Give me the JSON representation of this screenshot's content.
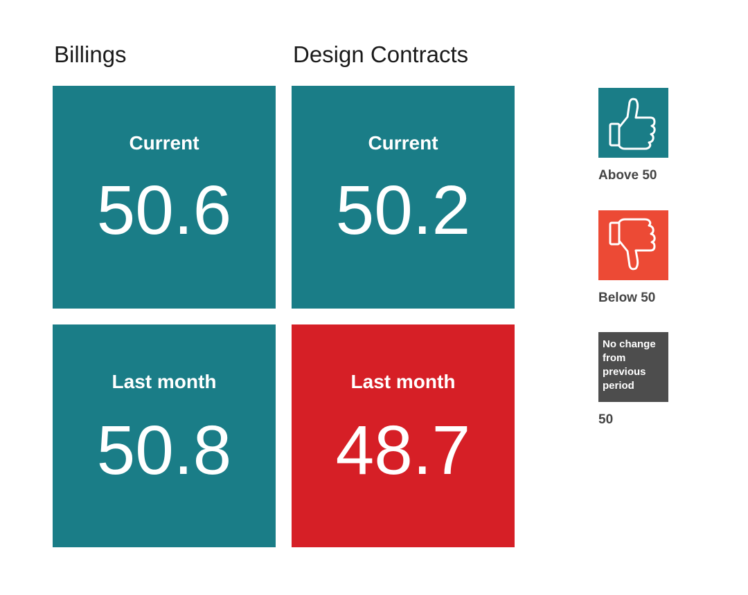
{
  "colors": {
    "above": "#1a7d87",
    "below": "#d61f26",
    "legend_below": "#ec4a35",
    "no_change": "#4d4d4d"
  },
  "chart_data": {
    "type": "table",
    "threshold": 50,
    "columns": [
      "Billings",
      "Design Contracts"
    ],
    "rows": [
      "Current",
      "Last month"
    ],
    "values": [
      [
        50.6,
        50.2
      ],
      [
        50.8,
        48.7
      ]
    ],
    "tiles": [
      {
        "column": "Billings",
        "label": "Current",
        "value": "50.6",
        "status": "above"
      },
      {
        "column": "Design Contracts",
        "label": "Current",
        "value": "50.2",
        "status": "above"
      },
      {
        "column": "Billings",
        "label": "Last month",
        "value": "50.8",
        "status": "above"
      },
      {
        "column": "Design Contracts",
        "label": "Last month",
        "value": "48.7",
        "status": "below"
      }
    ],
    "legend": [
      {
        "icon": "thumbs-up-icon",
        "label": "Above 50",
        "status": "above"
      },
      {
        "icon": "thumbs-down-icon",
        "label": "Below 50",
        "status": "below"
      },
      {
        "icon": "",
        "box_text": "No change from previous period",
        "label": "50",
        "status": "no_change"
      }
    ]
  }
}
